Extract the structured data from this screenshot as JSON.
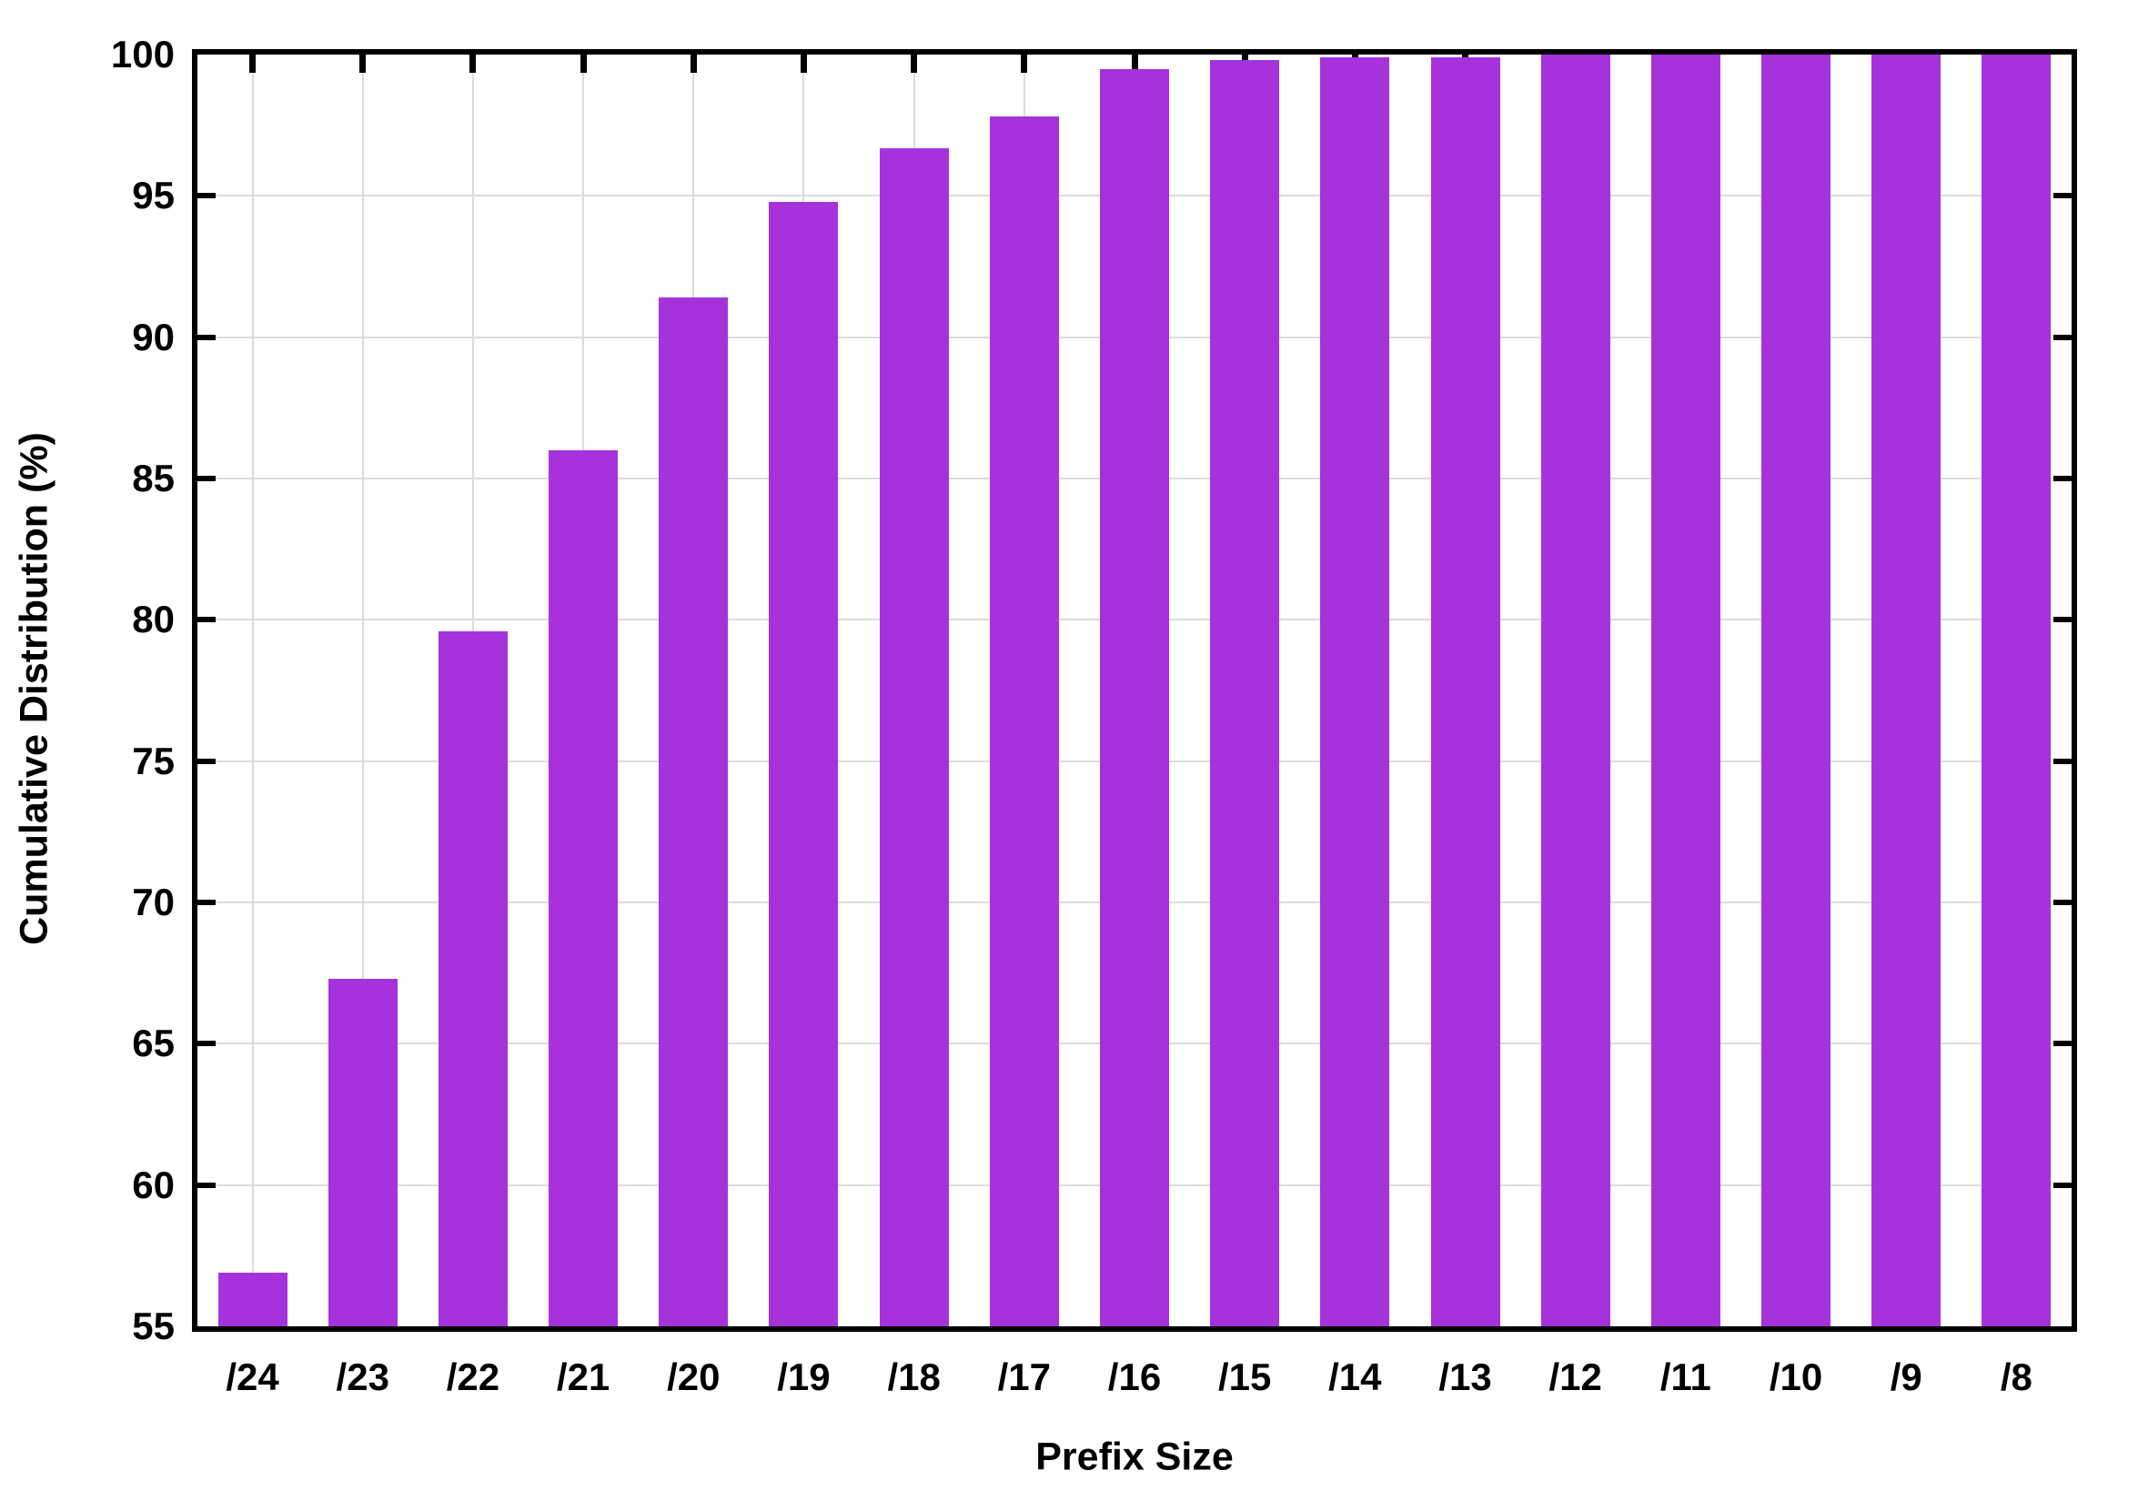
{
  "chart_data": {
    "type": "bar",
    "title": "",
    "xlabel": "Prefix Size",
    "ylabel": "Cumulative Distribution (%)",
    "categories": [
      "/24",
      "/23",
      "/22",
      "/21",
      "/20",
      "/19",
      "/18",
      "/17",
      "/16",
      "/15",
      "/14",
      "/13",
      "/12",
      "/11",
      "/10",
      "/9",
      "/8"
    ],
    "values": [
      56.9,
      67.3,
      79.6,
      86.0,
      91.4,
      94.8,
      96.7,
      97.8,
      99.5,
      99.8,
      99.9,
      99.9,
      100,
      100,
      100,
      100,
      100
    ],
    "ylim": [
      55,
      100
    ],
    "yticks": [
      55,
      60,
      65,
      70,
      75,
      80,
      85,
      90,
      95,
      100
    ],
    "grid": true,
    "legend_position": "none",
    "bar_color": "#a632dc",
    "grid_color": "#dcdcdc",
    "axis_color": "#000000",
    "background_color": "#ffffff"
  }
}
